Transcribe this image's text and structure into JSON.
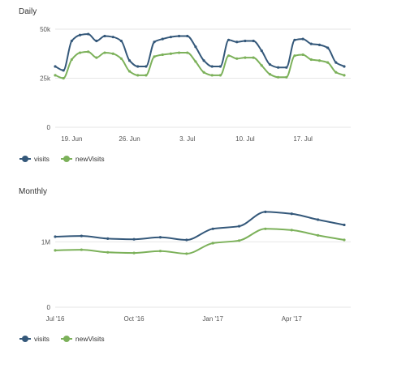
{
  "colors": {
    "visits": "#34587a",
    "newVisits": "#7cb15a",
    "grid": "#e6e6e6",
    "axis_text": "#555555"
  },
  "chart_data": [
    {
      "type": "line",
      "title": "Daily",
      "x_tick_labels": [
        "19. Jun",
        "26. Jun",
        "3. Jul",
        "10. Jul",
        "17. Jul"
      ],
      "x_tick_days": [
        2,
        9,
        16,
        23,
        30
      ],
      "x_range_days": [
        0,
        30
      ],
      "y_ticks": [
        0,
        25000,
        50000
      ],
      "y_tick_labels": [
        "0",
        "25k",
        "50k"
      ],
      "ylim": [
        0,
        50000
      ],
      "grid": true,
      "legend_position": "bottom-left",
      "series": [
        {
          "name": "visits",
          "color": "#34587a",
          "values": [
            31000,
            29000,
            44000,
            47000,
            47500,
            44000,
            46500,
            46000,
            44000,
            34000,
            31000,
            31000,
            43500,
            45000,
            46000,
            46500,
            46500,
            41000,
            34000,
            31000,
            31000,
            44500,
            43500,
            44000,
            44000,
            39000,
            32000,
            30500,
            30500,
            44500,
            45000,
            42500,
            42000,
            40500,
            33000,
            31000
          ]
        },
        {
          "name": "newVisits",
          "color": "#7cb15a",
          "values": [
            26500,
            25000,
            34500,
            38000,
            38500,
            35500,
            38000,
            37500,
            35000,
            28500,
            26500,
            26500,
            36000,
            37000,
            37500,
            38000,
            38000,
            33500,
            28000,
            26500,
            26500,
            36500,
            35000,
            35500,
            35500,
            31500,
            27000,
            25500,
            25500,
            36500,
            37000,
            34500,
            34000,
            33000,
            28000,
            26500
          ]
        }
      ]
    },
    {
      "type": "line",
      "title": "Monthly",
      "x_tick_labels": [
        "Jul '16",
        "Oct '16",
        "Jan '17",
        "Apr '17"
      ],
      "x_tick_months": [
        0,
        3,
        6,
        9
      ],
      "x_range_months": [
        0,
        11.5
      ],
      "y_ticks": [
        0,
        1000000
      ],
      "y_tick_labels": [
        "0",
        "1M"
      ],
      "ylim": [
        0,
        1700000
      ],
      "grid": true,
      "legend_position": "bottom-left",
      "series": [
        {
          "name": "visits",
          "color": "#34587a",
          "values": [
            1080000,
            1090000,
            1050000,
            1040000,
            1070000,
            1030000,
            1200000,
            1240000,
            1460000,
            1430000,
            1340000,
            1260000
          ]
        },
        {
          "name": "newVisits",
          "color": "#7cb15a",
          "values": [
            870000,
            880000,
            840000,
            830000,
            860000,
            820000,
            980000,
            1020000,
            1200000,
            1180000,
            1100000,
            1030000
          ]
        }
      ]
    }
  ]
}
